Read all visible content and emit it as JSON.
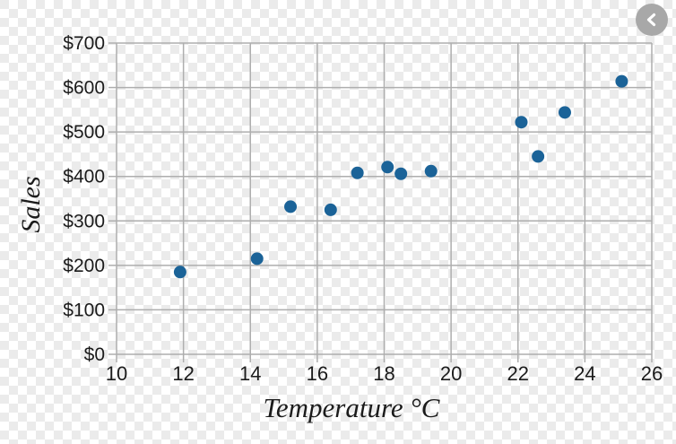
{
  "controls": {
    "back_icon": "chevron-left",
    "back_button_color": "#a8a8a8"
  },
  "chart_data": {
    "type": "scatter",
    "title": "",
    "xlabel": "Temperature °C",
    "ylabel": "Sales",
    "xlim": [
      10,
      26
    ],
    "ylim": [
      0,
      700
    ],
    "grid": true,
    "legend": "none",
    "x_ticks": [
      {
        "value": 10,
        "label": "10"
      },
      {
        "value": 12,
        "label": "12"
      },
      {
        "value": 14,
        "label": "14"
      },
      {
        "value": 16,
        "label": "16"
      },
      {
        "value": 18,
        "label": "18"
      },
      {
        "value": 20,
        "label": "20"
      },
      {
        "value": 22,
        "label": "22"
      },
      {
        "value": 24,
        "label": "24"
      },
      {
        "value": 26,
        "label": "26"
      }
    ],
    "y_ticks": [
      {
        "value": 0,
        "label": "$0"
      },
      {
        "value": 100,
        "label": "$100"
      },
      {
        "value": 200,
        "label": "$200"
      },
      {
        "value": 300,
        "label": "$300"
      },
      {
        "value": 400,
        "label": "$400"
      },
      {
        "value": 500,
        "label": "$500"
      },
      {
        "value": 600,
        "label": "$600"
      },
      {
        "value": 700,
        "label": "$700"
      }
    ],
    "points": [
      {
        "x": 11.9,
        "y": 185
      },
      {
        "x": 14.2,
        "y": 215
      },
      {
        "x": 15.2,
        "y": 332
      },
      {
        "x": 16.4,
        "y": 325
      },
      {
        "x": 17.2,
        "y": 408
      },
      {
        "x": 18.1,
        "y": 421
      },
      {
        "x": 18.5,
        "y": 406
      },
      {
        "x": 19.4,
        "y": 412
      },
      {
        "x": 22.1,
        "y": 522
      },
      {
        "x": 22.6,
        "y": 445
      },
      {
        "x": 23.4,
        "y": 544
      },
      {
        "x": 25.1,
        "y": 614
      }
    ],
    "point_color": "#1b6398",
    "grid_color": "#aeaeae",
    "text_color": "#1b1b1b"
  }
}
